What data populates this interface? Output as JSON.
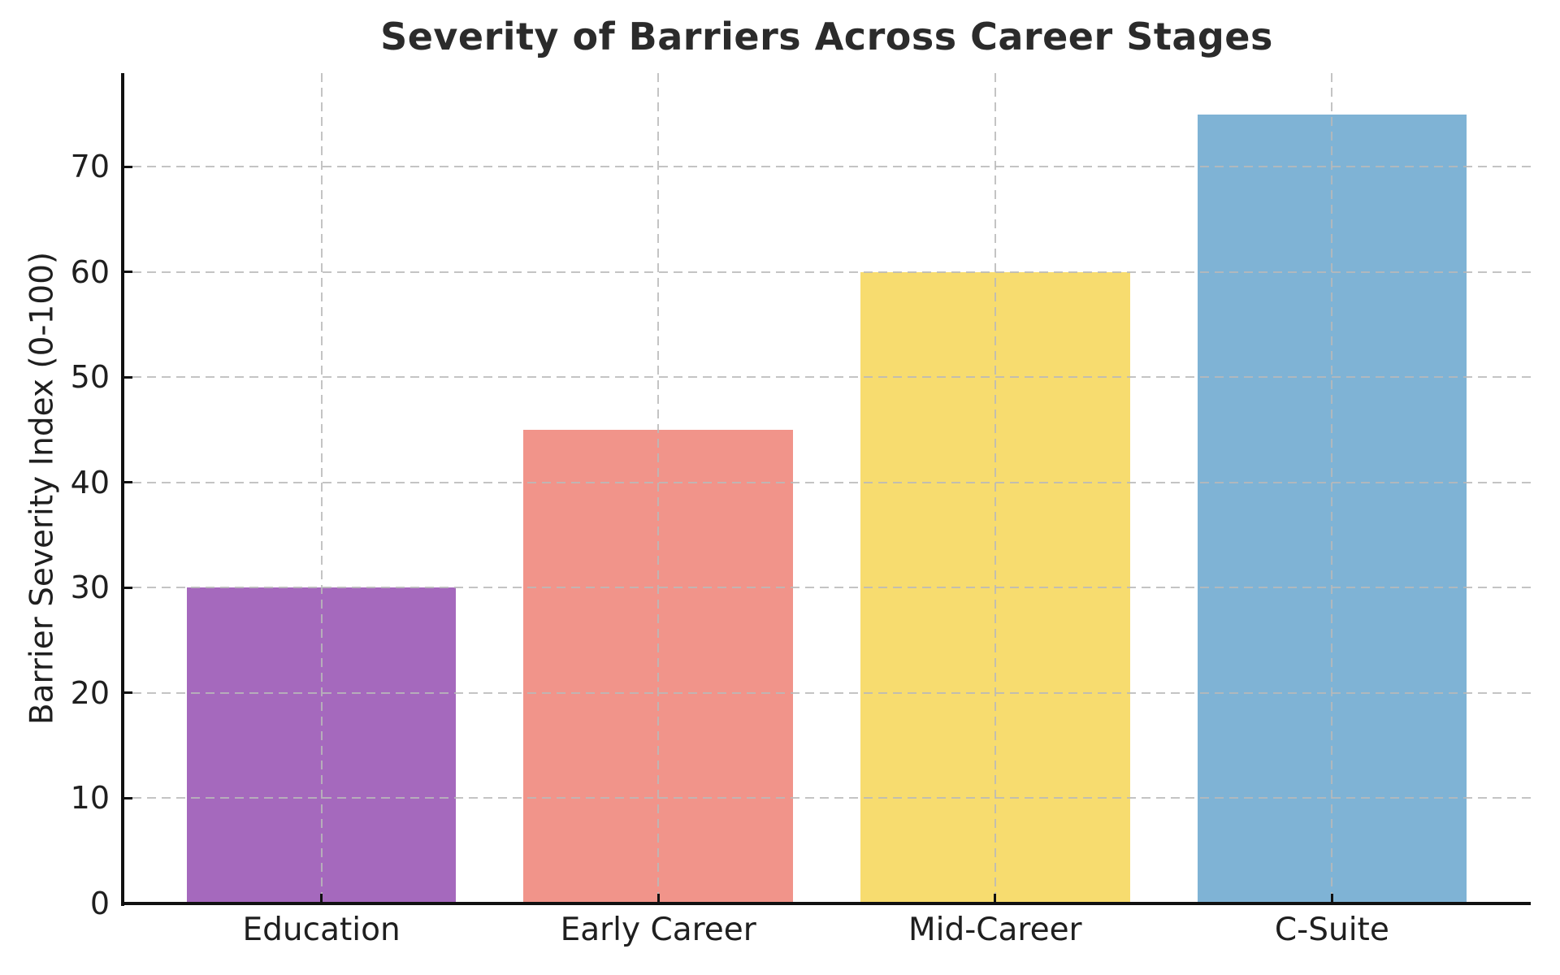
{
  "chart_data": {
    "type": "bar",
    "title": "Severity of Barriers Across Career Stages",
    "categories": [
      "Education",
      "Early Career",
      "Mid-Career",
      "C-Suite"
    ],
    "values": [
      30,
      45,
      60,
      75
    ],
    "bar_colors": [
      "#a569bd",
      "#f1948a",
      "#f7dc6f",
      "#7fb3d5"
    ],
    "xlabel": "",
    "ylabel": "Barrier Severity Index (0-100)",
    "yticks": [
      0,
      10,
      20,
      30,
      40,
      50,
      60,
      70
    ],
    "ylim": [
      0,
      78.9
    ],
    "bar_width_fraction": 0.8,
    "grid": "dashed horizontal and vertical gridlines, drawn above bars",
    "legend": "none"
  },
  "colors": {
    "background": "#ffffff",
    "text": "#1f1f1f",
    "title_text": "#2b2b2b",
    "axis": "#111111",
    "grid": "#b9b9b9"
  }
}
